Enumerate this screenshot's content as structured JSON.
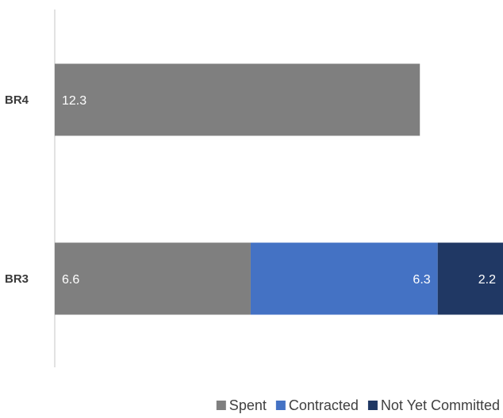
{
  "chart_data": {
    "type": "bar",
    "orientation": "horizontal",
    "stacked": true,
    "title": "",
    "xlabel": "",
    "ylabel": "",
    "categories": [
      "BR4",
      "BR3"
    ],
    "series": [
      {
        "name": "Spent",
        "color": "#7f7f7f",
        "values": [
          12.3,
          6.6
        ],
        "labels": [
          "12.3",
          "6.6"
        ]
      },
      {
        "name": "Contracted",
        "color": "#4472c4",
        "values": [
          0,
          6.3
        ],
        "labels": [
          "",
          "6.3"
        ]
      },
      {
        "name": "Not Yet Committed",
        "color": "#203864",
        "values": [
          0,
          2.2
        ],
        "labels": [
          "",
          "2.2"
        ]
      }
    ],
    "xlim": [
      0,
      15.1
    ],
    "grid": false,
    "axis_visible": false,
    "legend": "bottom-right"
  }
}
